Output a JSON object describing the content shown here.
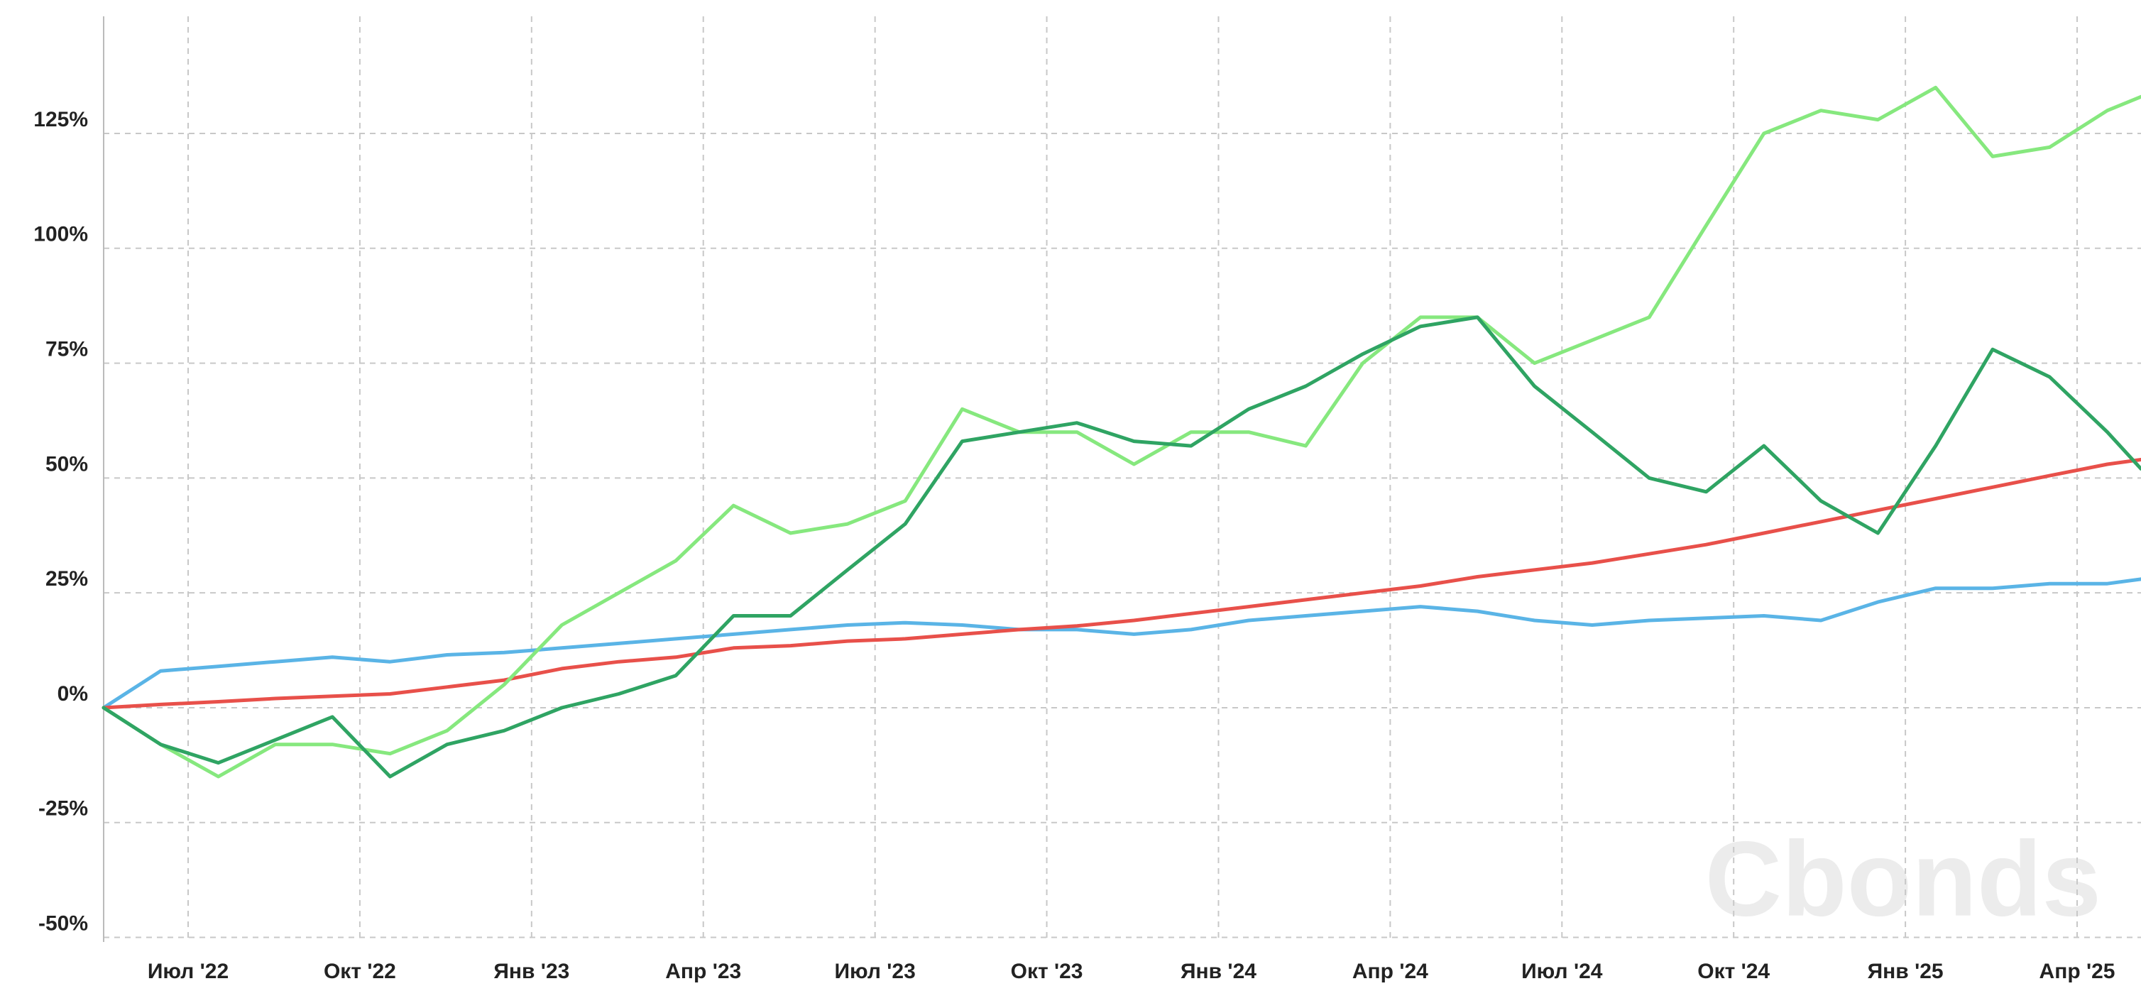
{
  "chart_data": {
    "type": "line",
    "watermark": "Cbonds",
    "x": [
      2022.377,
      2022.46,
      2022.544,
      2022.627,
      2022.71,
      2022.794,
      2022.877,
      2022.96,
      2023.044,
      2023.127,
      2023.21,
      2023.294,
      2023.377,
      2023.46,
      2023.544,
      2023.627,
      2023.71,
      2023.794,
      2023.877,
      2023.96,
      2024.044,
      2024.127,
      2024.21,
      2024.294,
      2024.377,
      2024.46,
      2024.544,
      2024.627,
      2024.71,
      2024.794,
      2024.877,
      2024.96,
      2025.044,
      2025.127,
      2025.21,
      2025.294,
      2025.343
    ],
    "xlim": [
      2022.377,
      2025.343
    ],
    "xticks": [
      {
        "value": 2022.5,
        "label": "Июл '22"
      },
      {
        "value": 2022.75,
        "label": "Окт '22"
      },
      {
        "value": 2023.0,
        "label": "Янв '23"
      },
      {
        "value": 2023.25,
        "label": "Апр '23"
      },
      {
        "value": 2023.5,
        "label": "Июл '23"
      },
      {
        "value": 2023.75,
        "label": "Окт '23"
      },
      {
        "value": 2024.0,
        "label": "Янв '24"
      },
      {
        "value": 2024.25,
        "label": "Апр '24"
      },
      {
        "value": 2024.5,
        "label": "Июл '24"
      },
      {
        "value": 2024.75,
        "label": "Окт '24"
      },
      {
        "value": 2025.0,
        "label": "Янв '25"
      },
      {
        "value": 2025.25,
        "label": "Апр '25"
      }
    ],
    "ylim": [
      -51,
      150.5
    ],
    "yticks": [
      {
        "value": -50,
        "label": "-50%"
      },
      {
        "value": -25,
        "label": "-25%"
      },
      {
        "value": 0,
        "label": "0%"
      },
      {
        "value": 25,
        "label": "25%"
      },
      {
        "value": 50,
        "label": "50%"
      },
      {
        "value": 75,
        "label": "75%"
      },
      {
        "value": 100,
        "label": "100%"
      },
      {
        "value": 125,
        "label": "125%"
      }
    ],
    "grid": true,
    "series": [
      {
        "color": "#5ab4e6",
        "values": [
          0,
          8,
          9,
          10,
          11,
          10,
          11.5,
          12,
          13,
          14,
          15,
          16,
          17,
          18,
          18.5,
          18,
          17,
          17,
          16,
          17,
          19,
          20,
          21,
          22,
          21,
          19,
          18,
          19,
          19.5,
          20,
          19,
          23,
          26,
          26,
          27,
          27,
          28
        ]
      },
      {
        "color": "#e8504a",
        "values": [
          0,
          0.7,
          1.3,
          2,
          2.5,
          3,
          4.5,
          6,
          8.5,
          10,
          11,
          13,
          13.5,
          14.5,
          15,
          16,
          17,
          17.8,
          19,
          20.5,
          22,
          23.5,
          25,
          26.5,
          28.5,
          30,
          31.5,
          33.5,
          35.5,
          38,
          40.5,
          43,
          45.5,
          48,
          50.5,
          53,
          54
        ]
      },
      {
        "color": "#86e87e",
        "values": [
          0,
          -8,
          -15,
          -8,
          -8,
          -10,
          -5,
          5,
          18,
          25,
          32,
          44,
          38,
          40,
          45,
          65,
          60,
          60,
          53,
          60,
          60,
          57,
          75,
          85,
          85,
          75,
          80,
          85,
          105,
          125,
          130,
          128,
          135,
          120,
          122,
          130,
          133
        ]
      },
      {
        "color": "#2fa463",
        "values": [
          0,
          -8,
          -12,
          -7,
          -2,
          -15,
          -8,
          -5,
          0,
          3,
          7,
          20,
          20,
          30,
          40,
          58,
          60,
          62,
          58,
          57,
          65,
          70,
          77,
          83,
          85,
          70,
          60,
          50,
          47,
          57,
          45,
          38,
          57,
          78,
          72,
          60,
          52
        ]
      }
    ]
  }
}
